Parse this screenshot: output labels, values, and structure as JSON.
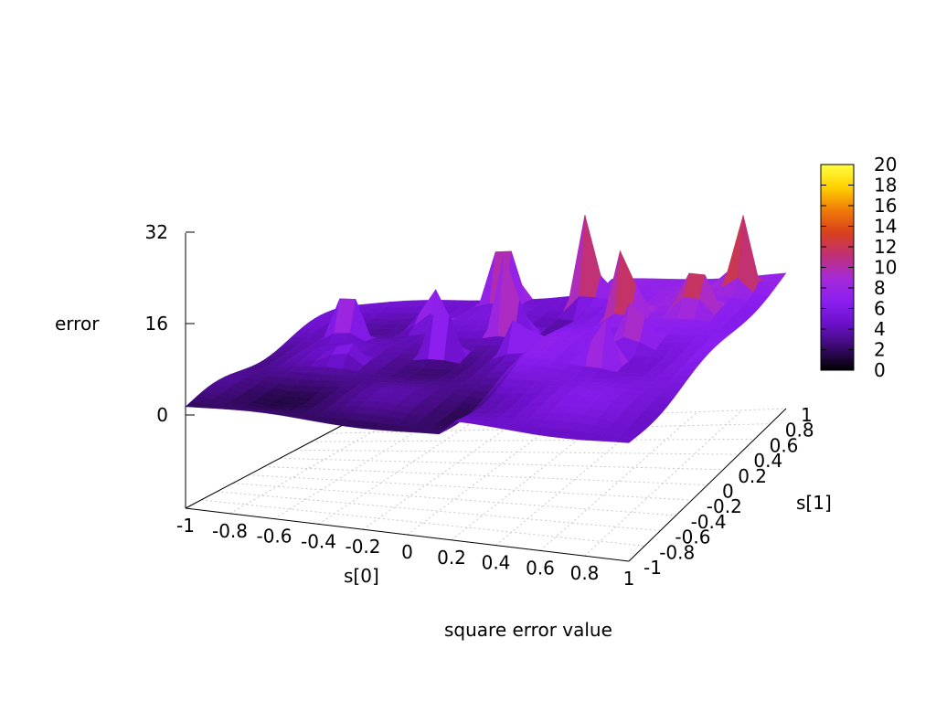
{
  "chart_data": {
    "type": "surface3d",
    "xlabel": "s[0]",
    "ylabel": "s[1]",
    "zlabel": "error",
    "caption": "square error value",
    "xlim": [
      -1,
      1
    ],
    "ylim": [
      -1,
      1
    ],
    "zlim": [
      -16,
      32
    ],
    "x_ticks": [
      "-1",
      "-0.8",
      "-0.6",
      "-0.4",
      "-0.2",
      "0",
      "0.2",
      "0.4",
      "0.6",
      "0.8",
      "1"
    ],
    "y_ticks": [
      "-1",
      "-0.8",
      "-0.6",
      "-0.4",
      "-0.2",
      "0",
      "0.2",
      "0.4",
      "0.6",
      "0.8",
      "1"
    ],
    "z_ticks": [
      "0",
      "16",
      "32"
    ],
    "z_tick_values": [
      0,
      16,
      32
    ],
    "colorbar": {
      "range": [
        0,
        20
      ],
      "ticks": [
        "0",
        "2",
        "4",
        "6",
        "8",
        "10",
        "12",
        "14",
        "16",
        "18",
        "20"
      ],
      "palette": [
        "#000000",
        "#3a0a6e",
        "#6a10c8",
        "#8a1ef0",
        "#a52ad8",
        "#c03078",
        "#d8401e",
        "#f07a08",
        "#ffd000",
        "#ffff40"
      ]
    },
    "grid": true,
    "peaks": [
      {
        "s0": -0.75,
        "s1": 0.35,
        "error": 12
      },
      {
        "s0": -0.45,
        "s1": 0.55,
        "error": 9
      },
      {
        "s0": -0.25,
        "s1": 0.95,
        "error": 18
      },
      {
        "s0": -0.05,
        "s1": 0.45,
        "error": 20
      },
      {
        "s0": -0.25,
        "s1": 0.15,
        "error": 13
      },
      {
        "s0": 0.15,
        "s1": 0.85,
        "error": 17
      },
      {
        "s0": 0.45,
        "s1": 0.5,
        "error": 14
      },
      {
        "s0": 0.55,
        "s1": -0.05,
        "error": 12
      },
      {
        "s0": 0.75,
        "s1": 0.55,
        "error": 11
      },
      {
        "s0": 0.6,
        "s1": 0.2,
        "error": 10
      },
      {
        "s0": 0.85,
        "s1": 0.85,
        "error": 13
      },
      {
        "s0": -0.6,
        "s1": -0.1,
        "error": 5
      },
      {
        "s0": 0.1,
        "s1": 0.15,
        "error": 8
      }
    ]
  }
}
